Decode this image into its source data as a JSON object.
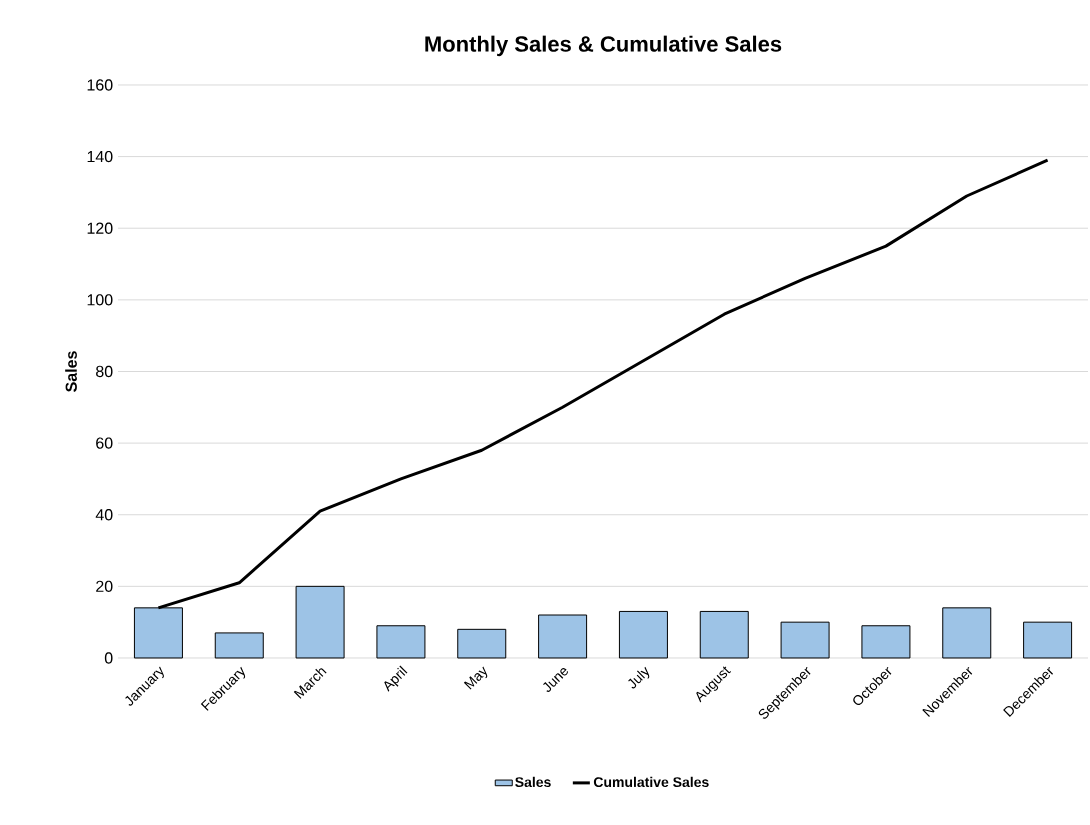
{
  "chart_data": {
    "type": "bar",
    "title": "Monthly Sales & Cumulative Sales",
    "ylabel": "Sales",
    "categories": [
      "January",
      "February",
      "March",
      "April",
      "May",
      "June",
      "July",
      "August",
      "September",
      "October",
      "November",
      "December"
    ],
    "series": [
      {
        "name": "Sales",
        "color": "#9dc3e6",
        "values": [
          14,
          7,
          20,
          9,
          8,
          12,
          13,
          13,
          10,
          9,
          14,
          10
        ]
      },
      {
        "name": "Cumulative Sales",
        "type": "line",
        "color": "#000000",
        "values": [
          14,
          21,
          41,
          50,
          58,
          70,
          83,
          96,
          106,
          115,
          129,
          139
        ]
      }
    ],
    "ylim": [
      0,
      160
    ],
    "yticks": [
      0,
      20,
      40,
      60,
      80,
      100,
      120,
      140,
      160
    ],
    "grid": "y",
    "legend": "bottom"
  }
}
